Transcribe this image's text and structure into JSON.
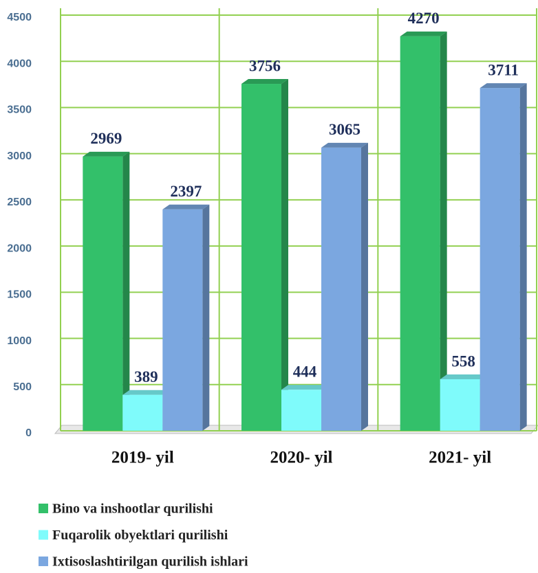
{
  "chart_data": {
    "type": "bar3d",
    "categories": [
      "2019- yil",
      "2020- yil",
      "2021- yil"
    ],
    "series": [
      {
        "name": "Bino va inshootlar qurilishi",
        "color": "#33c06a",
        "values": [
          2969,
          3756,
          4270
        ]
      },
      {
        "name": "Fuqarolik obyektlari qurilishi",
        "color": "#7ffbfb",
        "values": [
          389,
          444,
          558
        ]
      },
      {
        "name": "Ixtisoslashtirilgan qurilish ishlari",
        "color": "#7ba7e0",
        "values": [
          2397,
          3065,
          3711
        ]
      }
    ],
    "ylim": [
      0,
      4500
    ],
    "yticks": [
      0,
      500,
      1000,
      1500,
      2000,
      2500,
      3000,
      3500,
      4000,
      4500
    ],
    "grid": true,
    "grid_color": "#92d050",
    "legend": "bottom"
  }
}
